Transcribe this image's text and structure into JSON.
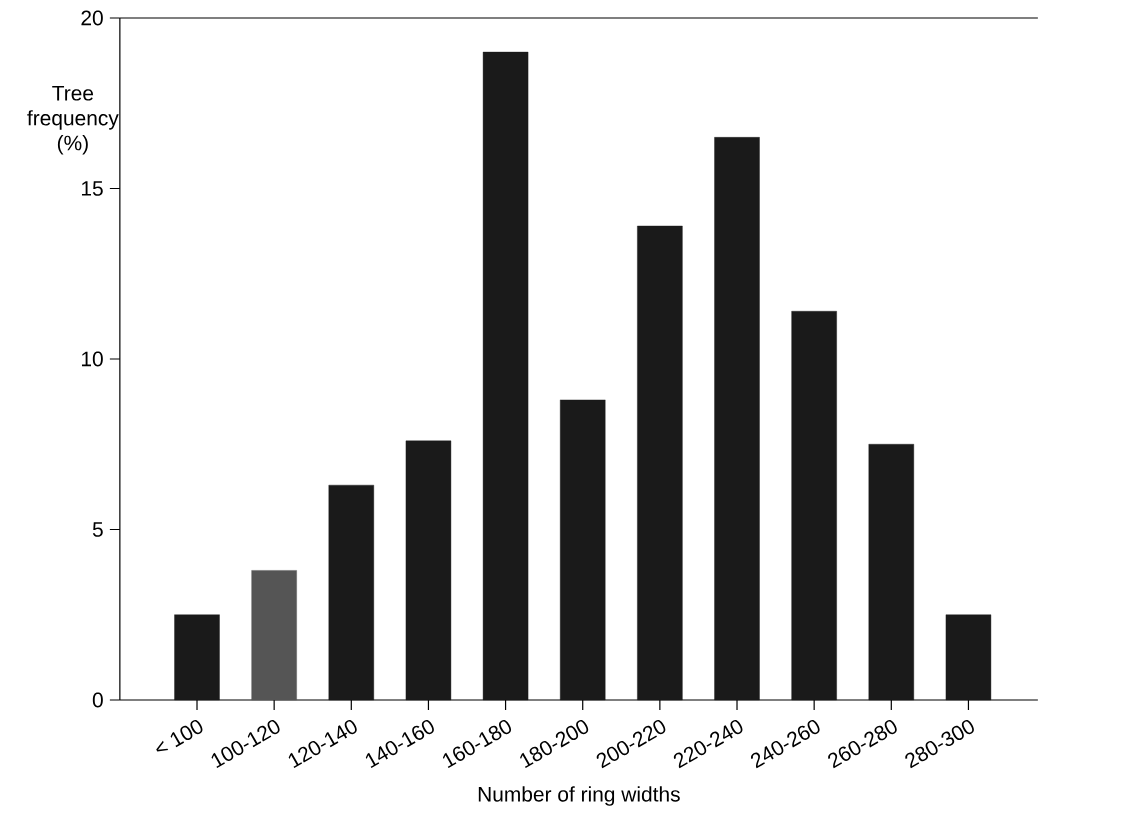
{
  "chart_data": {
    "type": "bar",
    "xlabel": "Number of ring widths",
    "ylabel": "Tree frequency (%)",
    "categories": [
      "< 100",
      "100-120",
      "120-140",
      "140-160",
      "160-180",
      "180-200",
      "200-220",
      "220-240",
      "240-260",
      "260-280",
      "280-300"
    ],
    "values": [
      2.5,
      3.8,
      6.3,
      7.6,
      19.0,
      8.8,
      13.9,
      16.5,
      11.4,
      7.5,
      2.5
    ],
    "colors": [
      "#1a1a1a",
      "#555555",
      "#1a1a1a",
      "#1a1a1a",
      "#1a1a1a",
      "#1a1a1a",
      "#1a1a1a",
      "#1a1a1a",
      "#1a1a1a",
      "#1a1a1a",
      "#1a1a1a"
    ],
    "ylim": [
      0,
      20
    ],
    "yticks": [
      0,
      5,
      10,
      15,
      20
    ]
  }
}
